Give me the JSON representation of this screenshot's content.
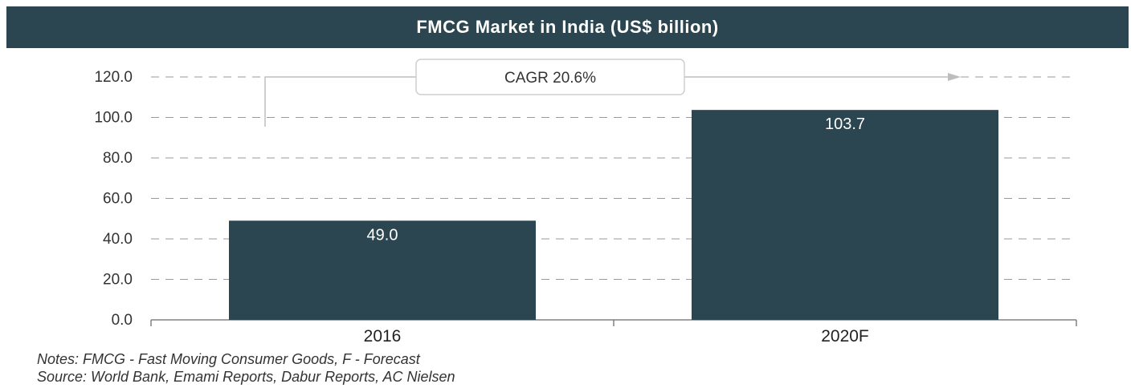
{
  "chart_data": {
    "type": "bar",
    "title": "FMCG Market in India (US$ billion)",
    "categories": [
      "2016",
      "2020F"
    ],
    "values": [
      49.0,
      103.7
    ],
    "value_labels": [
      "49.0",
      "103.7"
    ],
    "ylim": [
      0,
      120
    ],
    "yticks": [
      "0.0",
      "20.0",
      "40.0",
      "60.0",
      "80.0",
      "100.0",
      "120.0"
    ],
    "xlabel": "",
    "ylabel": "",
    "grid": "dashed horizontal",
    "annotation": "CAGR 20.6%",
    "bar_color": "#2b4650",
    "title_bar_color": "#2b4650"
  },
  "notes": {
    "line1": "Notes: FMCG - Fast Moving Consumer Goods,  F - Forecast",
    "line2": "Source: World Bank, Emami Reports, Dabur Reports, AC Nielsen"
  }
}
